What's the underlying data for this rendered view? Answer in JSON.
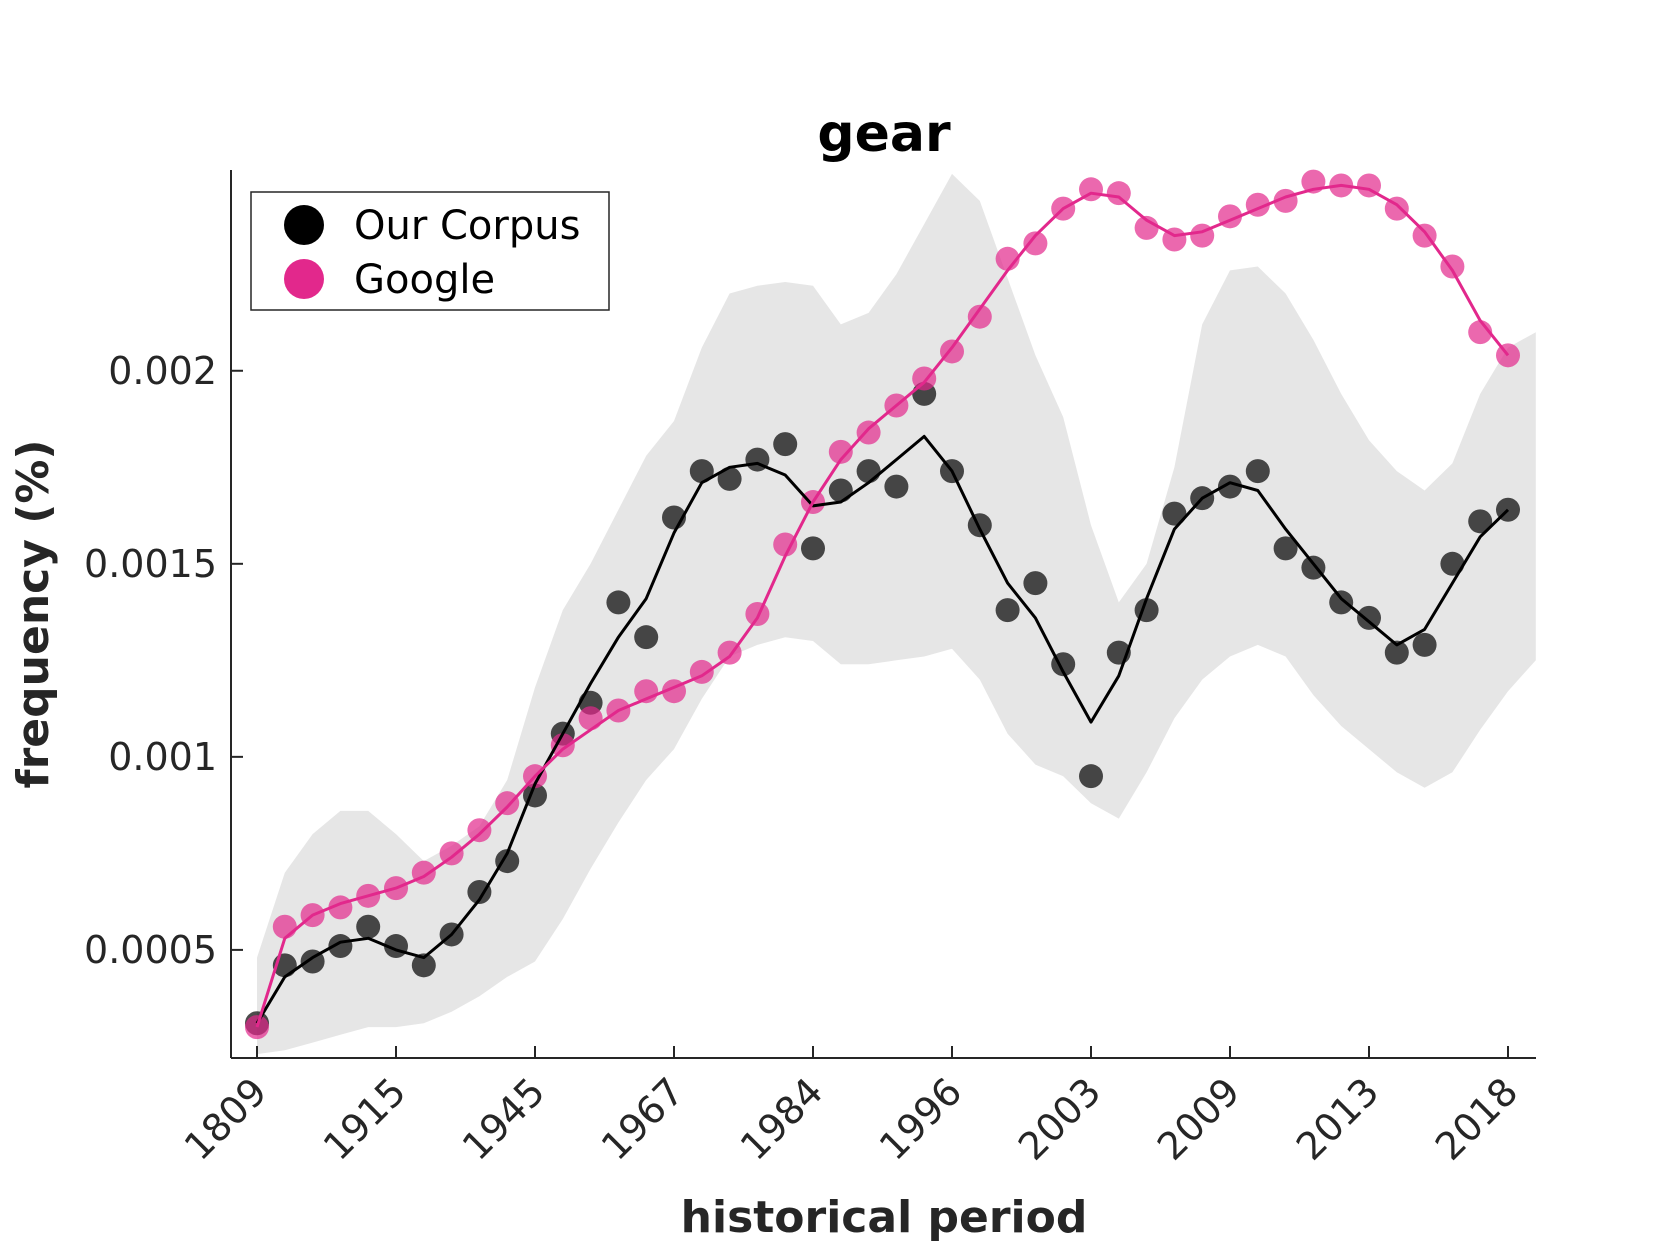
{
  "chart_data": {
    "type": "line",
    "title": "gear",
    "xlabel": "historical period",
    "ylabel": "frequency (%)",
    "ylim": [
      0.00022,
      0.00252
    ],
    "y_ticks": [
      0.0005,
      0.001,
      0.0015,
      0.002
    ],
    "y_tick_labels": [
      "0.0005",
      "0.001",
      "0.0015",
      "0.002"
    ],
    "x_tick_labels": [
      "1809",
      "1915",
      "1945",
      "1967",
      "1984",
      "1996",
      "2003",
      "2009",
      "2013",
      "2018"
    ],
    "x_tick_positions": [
      1,
      6,
      11,
      16,
      21,
      26,
      31,
      36,
      41,
      46
    ],
    "x_range": [
      0,
      47
    ],
    "grid": false,
    "legend": {
      "placement": "top-left",
      "entries": [
        "Our Corpus",
        "Google"
      ]
    },
    "colors": {
      "corpus": "#000000",
      "google": "#e2288c",
      "band": "#e6e6e6",
      "axis": "#262626"
    },
    "band": {
      "upper": [
        0.00048,
        0.0007,
        0.0008,
        0.00086,
        0.00086,
        0.0008,
        0.00073,
        0.00077,
        0.00082,
        0.00094,
        0.00118,
        0.00138,
        0.0015,
        0.00164,
        0.00178,
        0.00187,
        0.00206,
        0.0022,
        0.00222,
        0.00223,
        0.00222,
        0.00212,
        0.00215,
        0.00225,
        0.00238,
        0.00251,
        0.00244,
        0.00224,
        0.00204,
        0.00188,
        0.0016,
        0.0014,
        0.0015,
        0.00175,
        0.00212,
        0.00226,
        0.00227,
        0.0022,
        0.00208,
        0.00194,
        0.00182,
        0.00174,
        0.00169,
        0.00176,
        0.00194,
        0.00206,
        0.0021
      ],
      "lower": [
        0.00023,
        0.00024,
        0.00026,
        0.00028,
        0.0003,
        0.0003,
        0.00031,
        0.00034,
        0.00038,
        0.00043,
        0.00047,
        0.00058,
        0.00071,
        0.00083,
        0.00094,
        0.00102,
        0.00115,
        0.00126,
        0.00129,
        0.00131,
        0.0013,
        0.00124,
        0.00124,
        0.00125,
        0.00126,
        0.00128,
        0.0012,
        0.00106,
        0.00098,
        0.00095,
        0.00088,
        0.00084,
        0.00096,
        0.0011,
        0.0012,
        0.00126,
        0.00129,
        0.00126,
        0.00116,
        0.00108,
        0.00102,
        0.00096,
        0.00092,
        0.00096,
        0.00107,
        0.00117,
        0.00125
      ]
    },
    "series": [
      {
        "name": "Our Corpus",
        "points": [
          0.00031,
          0.00046,
          0.00047,
          0.00051,
          0.00056,
          0.00051,
          0.00046,
          0.00054,
          0.00065,
          0.00073,
          0.0009,
          0.00106,
          0.00114,
          0.0014,
          0.00131,
          0.00162,
          0.00174,
          0.00172,
          0.00177,
          0.00181,
          0.00154,
          0.00169,
          0.00174,
          0.0017,
          0.00194,
          0.00174,
          0.0016,
          0.00138,
          0.00145,
          0.00124,
          0.00095,
          0.00127,
          0.00138,
          0.00163,
          0.00167,
          0.0017,
          0.00174,
          0.00154,
          0.00149,
          0.0014,
          0.00136,
          0.00127,
          0.00129,
          0.0015,
          0.00161,
          0.00164
        ],
        "smooth": [
          0.00031,
          0.00043,
          0.00048,
          0.00052,
          0.00053,
          0.0005,
          0.00048,
          0.00054,
          0.00063,
          0.00075,
          0.00093,
          0.00106,
          0.00119,
          0.00131,
          0.00141,
          0.00158,
          0.00171,
          0.00175,
          0.00176,
          0.00173,
          0.00165,
          0.00166,
          0.00171,
          0.00177,
          0.00183,
          0.00174,
          0.00159,
          0.00145,
          0.00136,
          0.00122,
          0.00109,
          0.00121,
          0.00141,
          0.00159,
          0.00167,
          0.00171,
          0.00169,
          0.00159,
          0.0015,
          0.00141,
          0.00135,
          0.00129,
          0.00133,
          0.00145,
          0.00157,
          0.00164
        ]
      },
      {
        "name": "Google",
        "points": [
          0.0003,
          0.00056,
          0.00059,
          0.00061,
          0.00064,
          0.00066,
          0.0007,
          0.00075,
          0.00081,
          0.00088,
          0.00095,
          0.00103,
          0.0011,
          0.00112,
          0.00117,
          0.00117,
          0.00122,
          0.00127,
          0.00137,
          0.00155,
          0.00166,
          0.00179,
          0.00184,
          0.00191,
          0.00198,
          0.00205,
          0.00214,
          0.00229,
          0.00233,
          0.00242,
          0.00247,
          0.00246,
          0.00237,
          0.00234,
          0.00235,
          0.0024,
          0.00243,
          0.00244,
          0.00249,
          0.00248,
          0.00248,
          0.00242,
          0.00235,
          0.00227,
          0.0021,
          0.00204
        ],
        "smooth": [
          0.0003,
          0.00053,
          0.00059,
          0.00062,
          0.00064,
          0.00066,
          0.00069,
          0.00074,
          0.0008,
          0.00087,
          0.00095,
          0.00102,
          0.00107,
          0.00112,
          0.00115,
          0.00118,
          0.00121,
          0.00126,
          0.00136,
          0.00152,
          0.00166,
          0.00177,
          0.00185,
          0.00191,
          0.00197,
          0.00206,
          0.00216,
          0.00226,
          0.00235,
          0.00242,
          0.00246,
          0.00245,
          0.00239,
          0.00235,
          0.00236,
          0.00239,
          0.00242,
          0.00245,
          0.00247,
          0.00248,
          0.00247,
          0.00243,
          0.00236,
          0.00226,
          0.00213,
          0.00204
        ]
      }
    ]
  }
}
